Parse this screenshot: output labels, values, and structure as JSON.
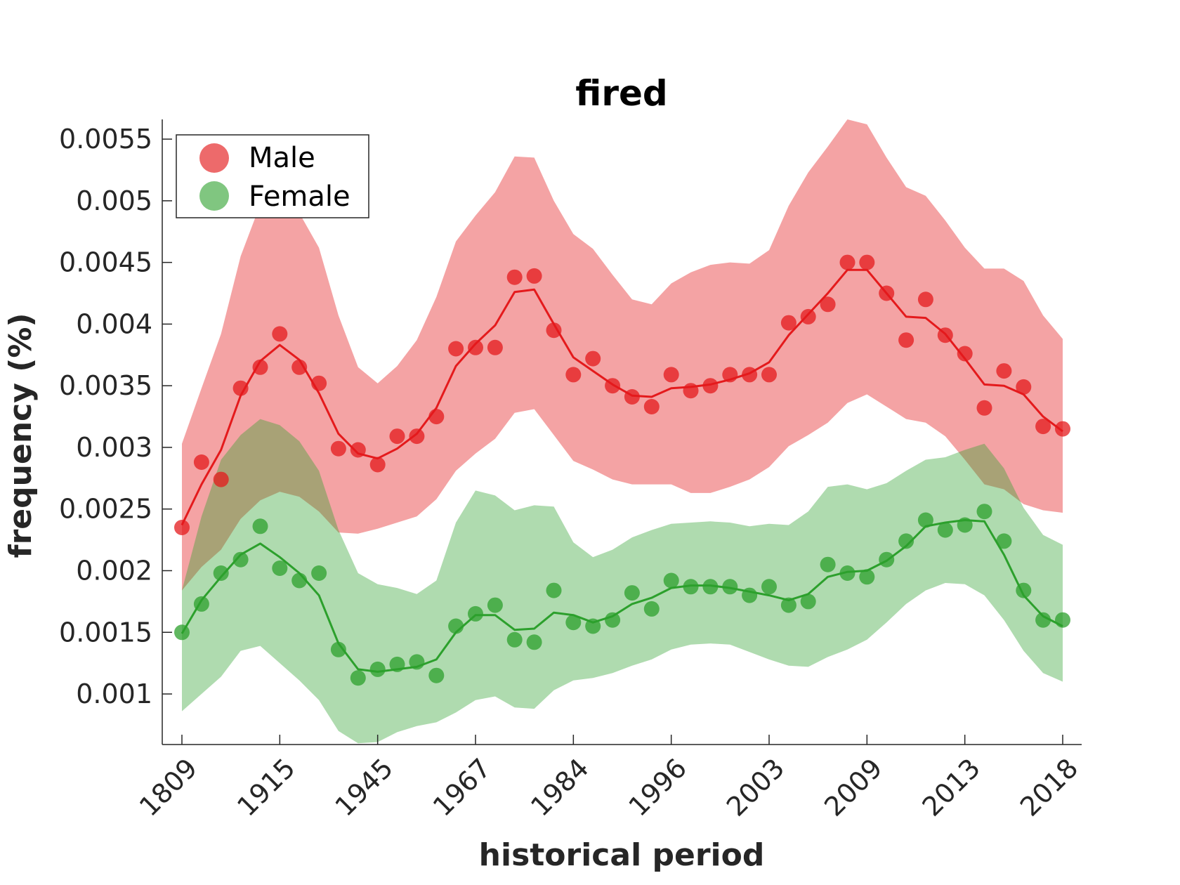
{
  "chart_data": {
    "type": "line",
    "title": "fired",
    "xlabel": "historical period",
    "ylabel": "frequency (%)",
    "ylim": [
      0.00059,
      0.00566
    ],
    "yticks": [
      "0.001",
      "0.0015",
      "0.002",
      "0.0025",
      "0.003",
      "0.0035",
      "0.004",
      "0.0045",
      "0.005",
      "0.0055"
    ],
    "xtick_labels": [
      "1809",
      "1915",
      "1945",
      "1967",
      "1984",
      "1996",
      "2003",
      "2009",
      "2013",
      "2018"
    ],
    "point_count": 46,
    "legend": {
      "position": "top-left",
      "entries": [
        "Male",
        "Female"
      ]
    },
    "series": [
      {
        "name": "Male",
        "color": "#e41a1c",
        "points": [
          0.00235,
          0.00288,
          0.00274,
          0.00348,
          0.00365,
          0.00392,
          0.00365,
          0.00352,
          0.00299,
          0.00298,
          0.00286,
          0.00309,
          0.00309,
          0.00325,
          0.0038,
          0.00381,
          0.00381,
          0.00438,
          0.00439,
          0.00395,
          0.00359,
          0.00372,
          0.0035,
          0.00341,
          0.00333,
          0.00359,
          0.00346,
          0.0035,
          0.00359,
          0.00359,
          0.00359,
          0.00401,
          0.00406,
          0.00416,
          0.0045,
          0.0045,
          0.00425,
          0.00387,
          0.0042,
          0.00391,
          0.00376,
          0.00332,
          0.00362,
          0.00349,
          0.00317,
          0.00315
        ],
        "line": [
          0.00237,
          0.0027,
          0.00298,
          0.00342,
          0.0037,
          0.00383,
          0.00371,
          0.00344,
          0.00311,
          0.00295,
          0.00291,
          0.00299,
          0.00311,
          0.00332,
          0.00366,
          0.00384,
          0.00399,
          0.00426,
          0.00428,
          0.004,
          0.00373,
          0.00362,
          0.00351,
          0.00342,
          0.00341,
          0.00348,
          0.00349,
          0.00351,
          0.00355,
          0.0036,
          0.00369,
          0.00391,
          0.00408,
          0.00425,
          0.00444,
          0.00444,
          0.00425,
          0.00406,
          0.00405,
          0.00392,
          0.00372,
          0.00351,
          0.0035,
          0.00343,
          0.00325,
          0.00313
        ],
        "upper": [
          0.00303,
          0.00348,
          0.00392,
          0.00455,
          0.00497,
          0.00506,
          0.0049,
          0.00462,
          0.00407,
          0.00365,
          0.00352,
          0.00366,
          0.00387,
          0.00422,
          0.00467,
          0.00488,
          0.00507,
          0.00536,
          0.00535,
          0.005,
          0.00473,
          0.00461,
          0.0044,
          0.0042,
          0.00416,
          0.00433,
          0.00442,
          0.00448,
          0.0045,
          0.00449,
          0.0046,
          0.00496,
          0.00523,
          0.00544,
          0.00566,
          0.00562,
          0.00535,
          0.00511,
          0.00504,
          0.00484,
          0.00462,
          0.00445,
          0.00445,
          0.00435,
          0.00407,
          0.00388
        ],
        "lower": [
          0.00184,
          0.00203,
          0.00217,
          0.00242,
          0.00257,
          0.00264,
          0.0026,
          0.00248,
          0.00231,
          0.0023,
          0.00234,
          0.00239,
          0.00244,
          0.00258,
          0.00281,
          0.00295,
          0.00307,
          0.00328,
          0.00331,
          0.0031,
          0.00289,
          0.00282,
          0.00274,
          0.0027,
          0.0027,
          0.0027,
          0.00263,
          0.00263,
          0.00268,
          0.00274,
          0.00284,
          0.00301,
          0.0031,
          0.0032,
          0.00336,
          0.00343,
          0.00333,
          0.00323,
          0.0032,
          0.00309,
          0.0029,
          0.0027,
          0.00266,
          0.00254,
          0.00249,
          0.00247
        ]
      },
      {
        "name": "Female",
        "color": "#2ca02c",
        "points": [
          0.0015,
          0.00173,
          0.00198,
          0.00209,
          0.00236,
          0.00202,
          0.00192,
          0.00198,
          0.00136,
          0.00113,
          0.0012,
          0.00124,
          0.00126,
          0.00115,
          0.00155,
          0.00165,
          0.00172,
          0.00144,
          0.00142,
          0.00184,
          0.00158,
          0.00155,
          0.0016,
          0.00182,
          0.00169,
          0.00192,
          0.00187,
          0.00187,
          0.00187,
          0.0018,
          0.00187,
          0.00172,
          0.00175,
          0.00205,
          0.00198,
          0.00195,
          0.00209,
          0.00224,
          0.00241,
          0.00233,
          0.00237,
          0.00248,
          0.00224,
          0.00184,
          0.0016,
          0.0016
        ],
        "line": [
          0.00149,
          0.00176,
          0.00195,
          0.00213,
          0.00222,
          0.00211,
          0.00198,
          0.0018,
          0.00141,
          0.0012,
          0.00118,
          0.0012,
          0.00122,
          0.00128,
          0.0015,
          0.00164,
          0.00164,
          0.00152,
          0.00153,
          0.00166,
          0.00164,
          0.00158,
          0.00163,
          0.00173,
          0.00178,
          0.00186,
          0.00188,
          0.00188,
          0.00186,
          0.00183,
          0.0018,
          0.00176,
          0.00181,
          0.00195,
          0.00199,
          0.002,
          0.00208,
          0.0022,
          0.00236,
          0.00239,
          0.00241,
          0.0024,
          0.00213,
          0.0018,
          0.00163,
          0.00155
        ],
        "upper": [
          0.00184,
          0.00244,
          0.0029,
          0.0031,
          0.00323,
          0.00318,
          0.00305,
          0.00281,
          0.00233,
          0.00198,
          0.00189,
          0.00186,
          0.00181,
          0.00192,
          0.00239,
          0.00265,
          0.00261,
          0.00249,
          0.00253,
          0.00252,
          0.00223,
          0.00211,
          0.00217,
          0.00227,
          0.00233,
          0.00238,
          0.00239,
          0.0024,
          0.00239,
          0.00236,
          0.00238,
          0.00237,
          0.00248,
          0.00268,
          0.0027,
          0.00266,
          0.00271,
          0.00281,
          0.0029,
          0.00292,
          0.00298,
          0.00303,
          0.00283,
          0.00251,
          0.00229,
          0.00221
        ],
        "lower": [
          0.00086,
          0.001,
          0.00114,
          0.00135,
          0.00139,
          0.00125,
          0.00111,
          0.00095,
          0.0007,
          0.0006,
          0.00061,
          0.00069,
          0.00074,
          0.00077,
          0.00085,
          0.00095,
          0.00098,
          0.00089,
          0.00088,
          0.00103,
          0.00111,
          0.00113,
          0.00117,
          0.00123,
          0.00128,
          0.00136,
          0.0014,
          0.00141,
          0.0014,
          0.00134,
          0.00128,
          0.00123,
          0.00122,
          0.0013,
          0.00136,
          0.00144,
          0.00158,
          0.00173,
          0.00184,
          0.0019,
          0.00189,
          0.0018,
          0.0016,
          0.00135,
          0.00117,
          0.0011
        ]
      }
    ]
  }
}
